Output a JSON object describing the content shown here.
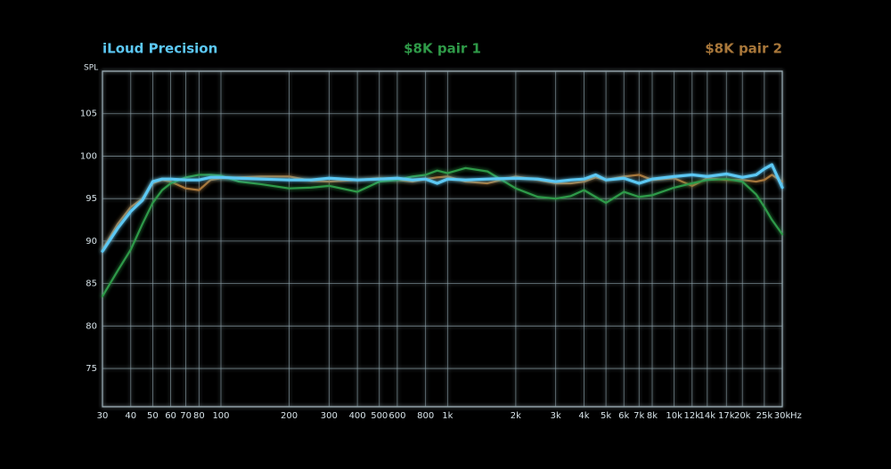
{
  "chart_data": {
    "type": "line",
    "x_label": "Hz",
    "y_label": "SPL",
    "log_x": true,
    "grid": true,
    "legend": "top",
    "xlim": [
      30,
      30000
    ],
    "ylim": [
      70.5,
      110
    ],
    "xticks": [
      30,
      40,
      50,
      60,
      70,
      80,
      100,
      200,
      300,
      400,
      500,
      600,
      800,
      {
        "value": 1000,
        "label": "1k"
      },
      {
        "value": 2000,
        "label": "2k"
      },
      {
        "value": 3000,
        "label": "3k"
      },
      {
        "value": 4000,
        "label": "4k"
      },
      {
        "value": 5000,
        "label": "5k"
      },
      {
        "value": 6000,
        "label": "6k"
      },
      {
        "value": 7000,
        "label": "7k"
      },
      {
        "value": 8000,
        "label": "8k"
      },
      {
        "value": 10000,
        "label": "10k"
      },
      {
        "value": 12000,
        "label": "12k"
      },
      {
        "value": 14000,
        "label": "14k"
      },
      {
        "value": 17000,
        "label": "17k"
      },
      {
        "value": 20000,
        "label": "20k"
      },
      {
        "value": 25000,
        "label": "25k"
      },
      {
        "value": 30000,
        "label": "30k"
      }
    ],
    "yticks": [
      75,
      80,
      85,
      90,
      95,
      100,
      105
    ],
    "x": [
      30,
      35,
      40,
      45,
      50,
      55,
      60,
      70,
      80,
      90,
      100,
      120,
      150,
      200,
      250,
      300,
      400,
      500,
      600,
      700,
      800,
      900,
      1000,
      1200,
      1500,
      2000,
      2500,
      3000,
      3500,
      4000,
      4500,
      5000,
      6000,
      7000,
      8000,
      10000,
      12000,
      14000,
      17000,
      20000,
      23000,
      25000,
      27000,
      30000
    ],
    "series": [
      {
        "name": "iLoud Precision",
        "color": "#5cc8f4",
        "values": [
          88.8,
          91.5,
          93.5,
          94.8,
          97.0,
          97.3,
          97.3,
          97.2,
          97.2,
          97.5,
          97.5,
          97.4,
          97.3,
          97.2,
          97.2,
          97.4,
          97.2,
          97.3,
          97.4,
          97.2,
          97.3,
          96.8,
          97.3,
          97.2,
          97.3,
          97.4,
          97.3,
          97.0,
          97.2,
          97.3,
          97.8,
          97.2,
          97.4,
          96.8,
          97.3,
          97.6,
          97.8,
          97.6,
          97.9,
          97.5,
          97.8,
          98.5,
          99.0,
          96.3
        ]
      },
      {
        "name": "$8K pair 1",
        "color": "#2f9a48",
        "values": [
          83.5,
          86.5,
          89.0,
          92.0,
          94.5,
          96.0,
          96.8,
          97.5,
          97.8,
          97.8,
          97.7,
          97.0,
          96.7,
          96.2,
          96.3,
          96.5,
          95.8,
          97.0,
          97.2,
          97.6,
          97.8,
          98.3,
          98.0,
          98.6,
          98.2,
          96.2,
          95.2,
          95.0,
          95.3,
          96.0,
          95.2,
          94.5,
          95.8,
          95.2,
          95.4,
          96.3,
          96.8,
          97.2,
          97.3,
          97.0,
          95.5,
          94.0,
          92.5,
          90.8
        ]
      },
      {
        "name": "$8K pair 2",
        "color": "#a8773a",
        "values": [
          89.0,
          92.0,
          94.0,
          95.0,
          96.8,
          97.2,
          97.0,
          96.2,
          96.0,
          97.2,
          97.4,
          97.5,
          97.6,
          97.6,
          97.1,
          97.0,
          97.2,
          97.4,
          97.2,
          97.0,
          97.3,
          97.5,
          97.6,
          97.0,
          96.8,
          97.6,
          97.2,
          96.8,
          96.8,
          97.0,
          97.5,
          97.2,
          97.6,
          97.8,
          97.2,
          97.4,
          96.5,
          97.4,
          97.2,
          97.2,
          97.0,
          97.2,
          97.8,
          97.0
        ]
      }
    ]
  }
}
